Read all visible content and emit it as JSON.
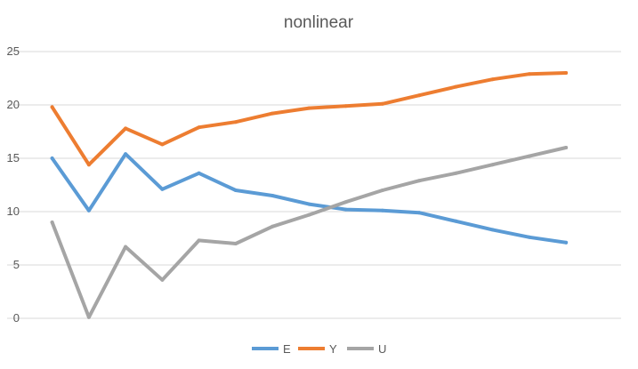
{
  "chart_data": {
    "type": "line",
    "title": "nonlinear",
    "xlabel": "",
    "ylabel": "",
    "ylim": [
      0,
      25
    ],
    "yticks": [
      0,
      5,
      10,
      15,
      20,
      25
    ],
    "grid": true,
    "legend_position": "bottom",
    "x": [
      1,
      2,
      3,
      4,
      5,
      6,
      7,
      8,
      9,
      10,
      11,
      12,
      13,
      14,
      15
    ],
    "series": [
      {
        "name": "E",
        "color": "#5b9bd5",
        "values": [
          15.0,
          10.1,
          15.4,
          12.1,
          13.6,
          12.0,
          11.5,
          10.7,
          10.2,
          10.1,
          9.9,
          9.1,
          8.3,
          7.6,
          7.1
        ]
      },
      {
        "name": "Y",
        "color": "#ed7d31",
        "values": [
          19.8,
          14.4,
          17.8,
          16.3,
          17.9,
          18.4,
          19.2,
          19.7,
          19.9,
          20.1,
          20.9,
          21.7,
          22.4,
          22.9,
          23.0
        ]
      },
      {
        "name": "U",
        "color": "#a5a5a5",
        "values": [
          9.0,
          0.1,
          6.7,
          3.6,
          7.3,
          7.0,
          8.6,
          9.7,
          10.9,
          12.0,
          12.9,
          13.6,
          14.4,
          15.2,
          16.0
        ]
      }
    ]
  }
}
